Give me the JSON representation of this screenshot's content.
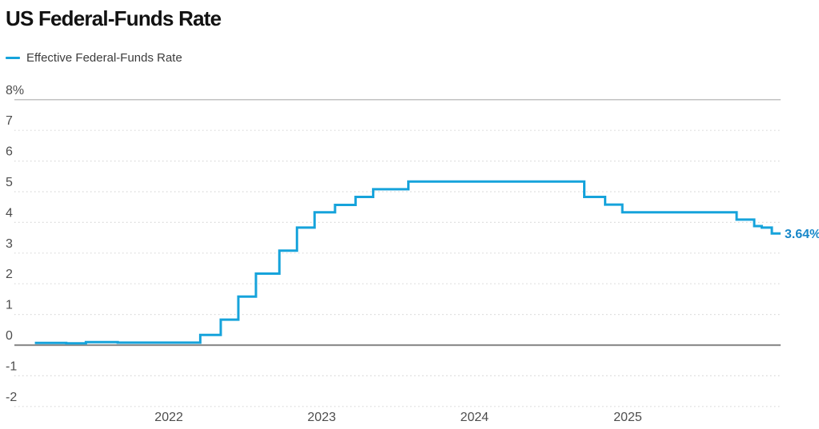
{
  "header": {
    "title": "US Federal-Funds Rate"
  },
  "legend": {
    "items": [
      {
        "label": "Effective Federal-Funds Rate",
        "color": "#16a3db"
      }
    ]
  },
  "chart_data": {
    "type": "line",
    "style": "step-after",
    "title": "US Federal-Funds Rate",
    "xlabel": "",
    "ylabel": "",
    "xlim": [
      "2021-01-01",
      "2026-01-01"
    ],
    "ylim": [
      -2.6,
      8.2
    ],
    "grid": {
      "dotted_color": "#d8d8d8",
      "top_color": "#c2c2c2",
      "zero_color": "#8e8e8e"
    },
    "axis_label_color": "#4d4d4d",
    "y_ticks": [
      {
        "label": "8%",
        "value": 8
      },
      {
        "label": "7",
        "value": 7
      },
      {
        "label": "6",
        "value": 6
      },
      {
        "label": "5",
        "value": 5
      },
      {
        "label": "4",
        "value": 4
      },
      {
        "label": "3",
        "value": 3
      },
      {
        "label": "2",
        "value": 2
      },
      {
        "label": "1",
        "value": 1
      },
      {
        "label": "0",
        "value": 0
      },
      {
        "label": "-1",
        "value": -1
      },
      {
        "label": "-2",
        "value": -2
      }
    ],
    "x_ticks": [
      {
        "label": "2022",
        "date": "2022-01-01"
      },
      {
        "label": "2023",
        "date": "2023-01-01"
      },
      {
        "label": "2024",
        "date": "2024-01-01"
      },
      {
        "label": "2025",
        "date": "2025-01-01"
      }
    ],
    "series": [
      {
        "name": "Effective Federal-Funds Rate",
        "color": "#16a3db",
        "points": [
          [
            "2021-02-15",
            0.07
          ],
          [
            "2021-05-01",
            0.06
          ],
          [
            "2021-06-17",
            0.1
          ],
          [
            "2021-09-01",
            0.08
          ],
          [
            "2022-03-17",
            0.33
          ],
          [
            "2022-05-05",
            0.83
          ],
          [
            "2022-06-16",
            1.58
          ],
          [
            "2022-07-28",
            2.33
          ],
          [
            "2022-09-22",
            3.08
          ],
          [
            "2022-11-03",
            3.83
          ],
          [
            "2022-12-15",
            4.33
          ],
          [
            "2023-02-02",
            4.57
          ],
          [
            "2023-03-23",
            4.83
          ],
          [
            "2023-05-04",
            5.08
          ],
          [
            "2023-07-27",
            5.33
          ],
          [
            "2024-09-19",
            4.83
          ],
          [
            "2024-11-08",
            4.58
          ],
          [
            "2024-12-19",
            4.33
          ],
          [
            "2025-09-18",
            4.09
          ],
          [
            "2025-10-30",
            3.88
          ],
          [
            "2025-11-17",
            3.83
          ],
          [
            "2025-12-11",
            3.64
          ],
          [
            "2025-12-19",
            3.64
          ]
        ]
      }
    ],
    "end_label": "3.64%",
    "end_label_color": "#1787c9",
    "legend_position": "top-left"
  }
}
